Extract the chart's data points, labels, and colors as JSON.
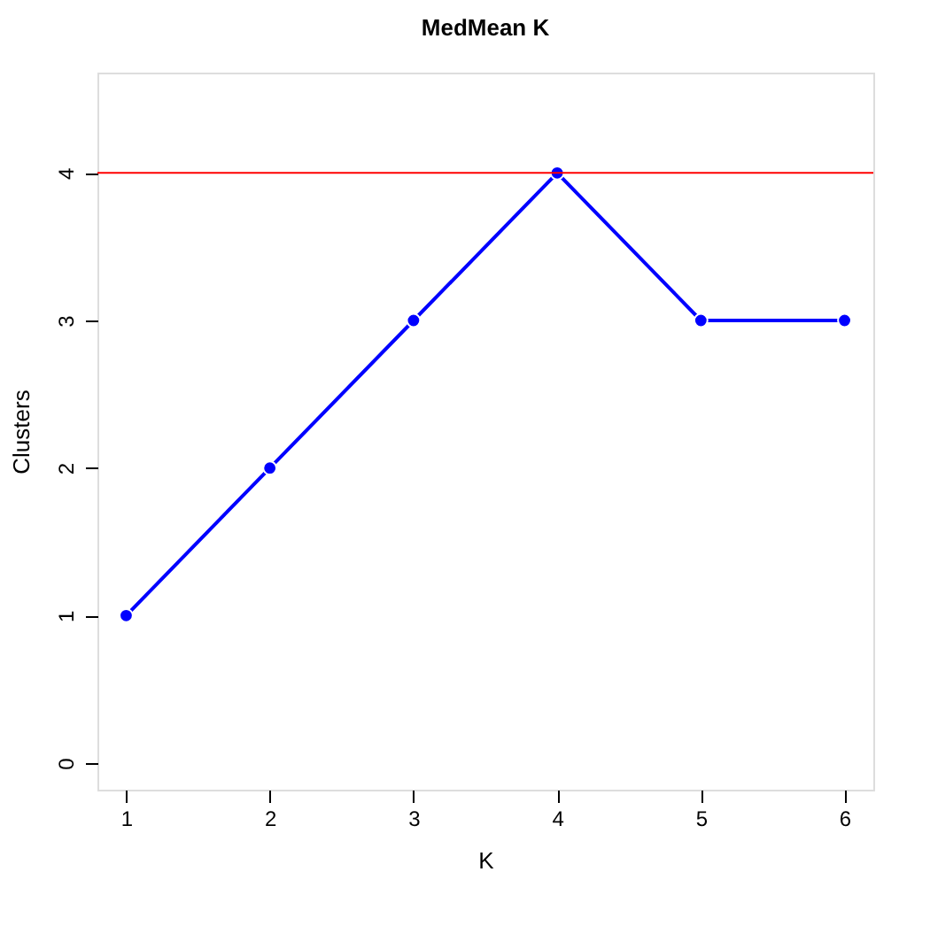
{
  "chart_data": {
    "type": "line",
    "title": "MedMean K",
    "xlabel": "K",
    "ylabel": "Clusters",
    "x": [
      1,
      2,
      3,
      4,
      5,
      6
    ],
    "series": [
      {
        "color": "#0000ff",
        "values": [
          1,
          2,
          3,
          4,
          3,
          3
        ]
      }
    ],
    "xlim": [
      0.8,
      6.2
    ],
    "xticks": [
      1,
      2,
      3,
      4,
      5,
      6
    ],
    "ylim": [
      -0.18,
      4.68
    ],
    "yticks": [
      0,
      1,
      2,
      3,
      4
    ],
    "ref_lines": [
      {
        "axis": "y",
        "value": 4,
        "color": "#ff0000"
      }
    ],
    "marker": "circle",
    "line_style": "solid",
    "grid": false
  }
}
